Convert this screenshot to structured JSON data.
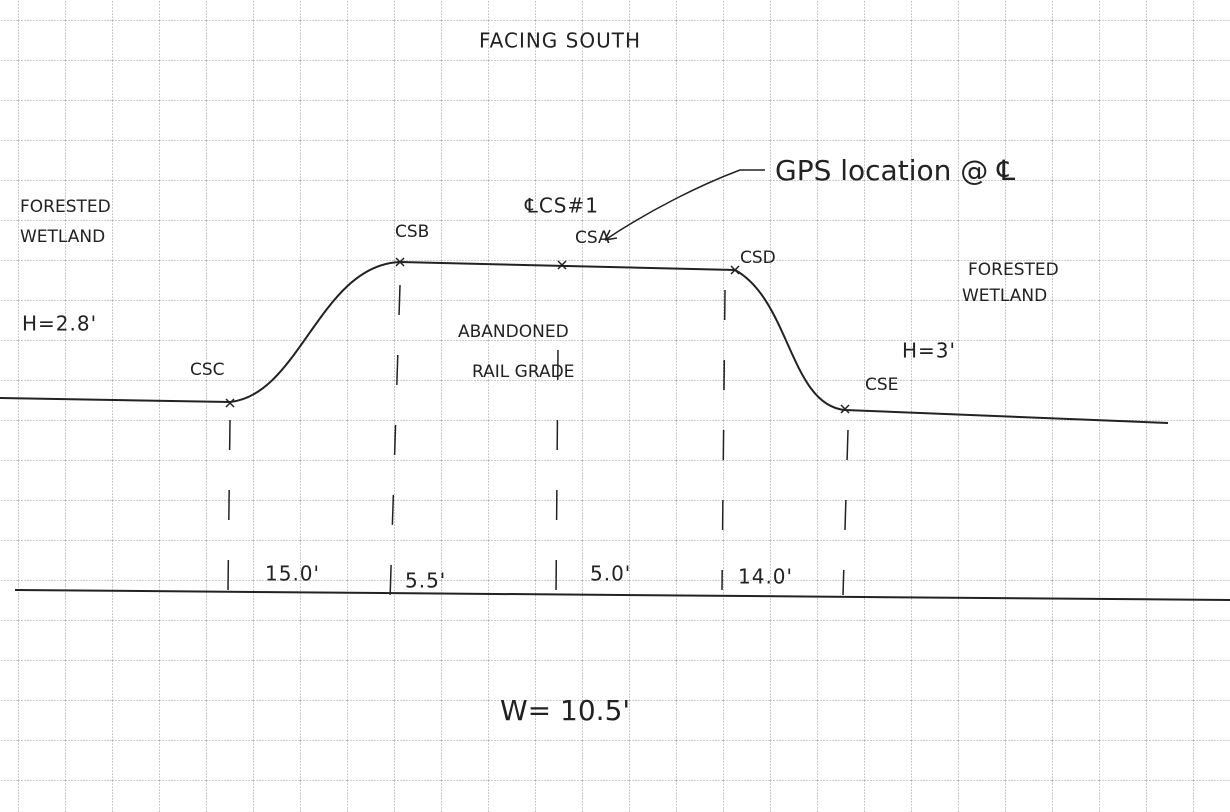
{
  "header": {
    "title": "FACING SOUTH"
  },
  "annotations": {
    "gps": "GPS location @ ℄",
    "cross_section": "℄CS#1"
  },
  "points": [
    "CSA",
    "CSB",
    "CSC",
    "CSD",
    "CSE"
  ],
  "zones": {
    "left": [
      "FORESTED",
      "WETLAND"
    ],
    "center": [
      "ABANDONED",
      "RAIL GRADE"
    ],
    "right": [
      "FORESTED",
      "WETLAND"
    ]
  },
  "heights": {
    "left": "H=2.8'",
    "right": "H=3'"
  },
  "segments": [
    "15.0'",
    "5.5'",
    "5.0'",
    "14.0'"
  ],
  "width": "W= 10.5'"
}
